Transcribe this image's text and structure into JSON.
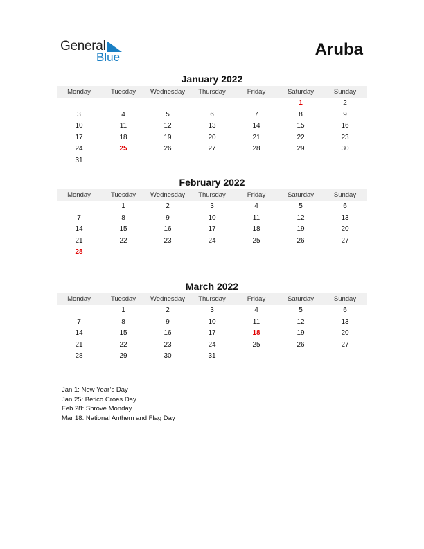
{
  "logo": {
    "line1": "General",
    "line2": "Blue",
    "accent": "#1a7fc4"
  },
  "country": "Aruba",
  "weekdays": [
    "Monday",
    "Tuesday",
    "Wednesday",
    "Thursday",
    "Friday",
    "Saturday",
    "Sunday"
  ],
  "holiday_color": "#e00000",
  "months": [
    {
      "title": "January 2022",
      "weeks": [
        [
          null,
          null,
          null,
          null,
          null,
          1,
          2
        ],
        [
          3,
          4,
          5,
          6,
          7,
          8,
          9
        ],
        [
          10,
          11,
          12,
          13,
          14,
          15,
          16
        ],
        [
          17,
          18,
          19,
          20,
          21,
          22,
          23
        ],
        [
          24,
          25,
          26,
          27,
          28,
          29,
          30
        ],
        [
          31,
          null,
          null,
          null,
          null,
          null,
          null
        ]
      ],
      "holidays": [
        1,
        25
      ]
    },
    {
      "title": "February 2022",
      "weeks": [
        [
          null,
          1,
          2,
          3,
          4,
          5,
          6
        ],
        [
          7,
          8,
          9,
          10,
          11,
          12,
          13
        ],
        [
          14,
          15,
          16,
          17,
          18,
          19,
          20
        ],
        [
          21,
          22,
          23,
          24,
          25,
          26,
          27
        ],
        [
          28,
          null,
          null,
          null,
          null,
          null,
          null
        ]
      ],
      "holidays": [
        28
      ]
    },
    {
      "title": "March 2022",
      "weeks": [
        [
          null,
          1,
          2,
          3,
          4,
          5,
          6
        ],
        [
          7,
          8,
          9,
          10,
          11,
          12,
          13
        ],
        [
          14,
          15,
          16,
          17,
          18,
          19,
          20
        ],
        [
          21,
          22,
          23,
          24,
          25,
          26,
          27
        ],
        [
          28,
          29,
          30,
          31,
          null,
          null,
          null
        ]
      ],
      "holidays": [
        18
      ]
    }
  ],
  "holiday_list": [
    "Jan 1: New Year’s Day",
    "Jan 25: Betico Croes Day",
    "Feb 28: Shrove Monday",
    "Mar 18: National Anthem and Flag Day"
  ]
}
